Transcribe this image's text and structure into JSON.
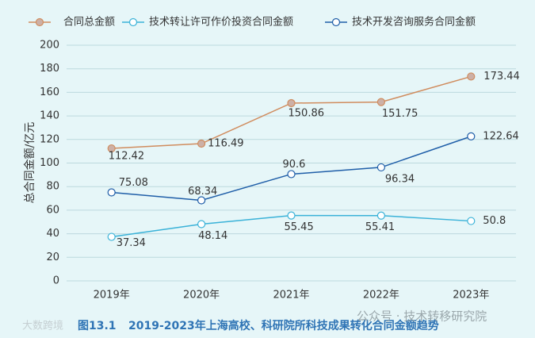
{
  "chart_data": {
    "type": "line",
    "y_label": "总合同金额/亿元",
    "categories": [
      "2019年",
      "2020年",
      "2021年",
      "2022年",
      "2023年"
    ],
    "series": [
      {
        "name": "合同总金额",
        "color": "#d08c5e",
        "marker_fill": "#cdb0a6",
        "values": [
          112.42,
          116.49,
          150.86,
          151.75,
          173.44
        ]
      },
      {
        "name": "技术转让许可作价投资合同金额",
        "color": "#3ab2d8",
        "marker_fill": "#ffffff",
        "values": [
          37.34,
          48.14,
          55.45,
          55.41,
          50.8
        ]
      },
      {
        "name": "技术开发咨询服务合同金额",
        "color": "#1f5ea8",
        "marker_fill": "#ffffff",
        "values": [
          75.08,
          68.34,
          90.6,
          96.34,
          122.64
        ]
      }
    ],
    "ylim": [
      0,
      200
    ],
    "yticks": [
      0,
      20,
      40,
      60,
      80,
      100,
      120,
      140,
      160,
      180,
      200
    ],
    "grid": true,
    "figure_label": "图13.1",
    "caption": "2019-2023年上海高校、科研院所科技成果转化合同金额趋势",
    "watermarks": [
      "公众号 · 技术转移研究院",
      "大数跨境"
    ]
  }
}
